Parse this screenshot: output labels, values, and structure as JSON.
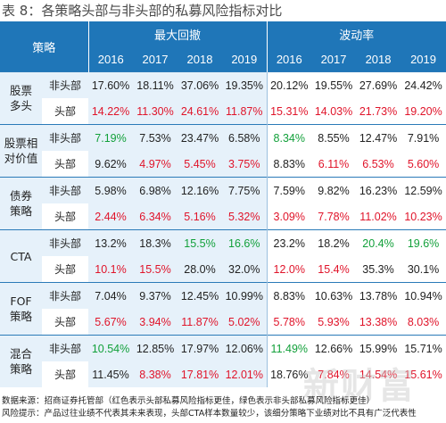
{
  "title": {
    "prefix": "表",
    "num": "8",
    "text": "：各策略头部与非头部的私募风险指标对比"
  },
  "header": {
    "strategy": "策略",
    "group1": "最大回撤",
    "group2": "波动率",
    "years": [
      "2016",
      "2017",
      "2018",
      "2019",
      "2016",
      "2017",
      "2018",
      "2019"
    ]
  },
  "groups": [
    {
      "strategy": "股票\n多头",
      "rows": [
        {
          "sub": "非头部",
          "values": [
            "17.60%",
            "18.11%",
            "37.06%",
            "19.35%",
            "20.12%",
            "19.55%",
            "27.69%",
            "24.42%"
          ]
        },
        {
          "sub": "头部",
          "values": [
            "14.22%",
            "11.30%",
            "24.61%",
            "11.87%",
            "15.31%",
            "14.03%",
            "21.73%",
            "19.20%"
          ]
        }
      ]
    },
    {
      "strategy": "股票相\n对价值",
      "rows": [
        {
          "sub": "非头部",
          "values": [
            "7.19%",
            "7.53%",
            "23.47%",
            "6.58%",
            "8.34%",
            "8.55%",
            "12.47%",
            "7.91%"
          ]
        },
        {
          "sub": "头部",
          "values": [
            "9.62%",
            "4.97%",
            "5.45%",
            "3.75%",
            "8.83%",
            "6.11%",
            "6.53%",
            "5.60%"
          ]
        }
      ]
    },
    {
      "strategy": "债券\n策略",
      "rows": [
        {
          "sub": "非头部",
          "values": [
            "5.98%",
            "6.98%",
            "12.16%",
            "7.75%",
            "7.59%",
            "9.82%",
            "16.23%",
            "12.59%"
          ]
        },
        {
          "sub": "头部",
          "values": [
            "2.44%",
            "6.34%",
            "5.16%",
            "5.32%",
            "3.09%",
            "7.78%",
            "11.02%",
            "10.23%"
          ]
        }
      ]
    },
    {
      "strategy": "CTA",
      "rows": [
        {
          "sub": "非头部",
          "values": [
            "13.2%",
            "18.3%",
            "15.5%",
            "16.6%",
            "23.2%",
            "18.2%",
            "20.4%",
            "19.6%"
          ]
        },
        {
          "sub": "头部",
          "values": [
            "10.1%",
            "15.5%",
            "28.0%",
            "32.0%",
            "12.0%",
            "15.4%",
            "35.3%",
            "30.1%"
          ]
        }
      ]
    },
    {
      "strategy": "FOF\n策略",
      "rows": [
        {
          "sub": "非头部",
          "values": [
            "7.04%",
            "9.37%",
            "12.45%",
            "10.99%",
            "8.83%",
            "10.63%",
            "13.78%",
            "10.94%"
          ]
        },
        {
          "sub": "头部",
          "values": [
            "5.67%",
            "3.94%",
            "11.87%",
            "5.02%",
            "5.78%",
            "5.93%",
            "13.38%",
            "8.03%"
          ]
        }
      ]
    },
    {
      "strategy": "混合\n策略",
      "rows": [
        {
          "sub": "非头部",
          "values": [
            "10.54%",
            "12.85%",
            "17.97%",
            "12.06%",
            "11.49%",
            "12.66%",
            "15.99%",
            "15.71%"
          ]
        },
        {
          "sub": "头部",
          "values": [
            "11.45%",
            "8.38%",
            "17.81%",
            "12.01%",
            "18.76%",
            "7.84%",
            "14.54%",
            "15.61%"
          ]
        }
      ]
    }
  ],
  "colors": {
    "header_bg": "#1f76b8",
    "highlight_red": "#e0142a",
    "highlight_green": "#12a03a",
    "band_light": "#e6f1fa"
  },
  "highlights": {
    "0": {
      "1": [
        "r",
        "r",
        "r",
        "r",
        "r",
        "r",
        "r",
        "r"
      ]
    },
    "1": {
      "0": [
        "g",
        "",
        "",
        "",
        "g",
        "",
        "",
        ""
      ],
      "1": [
        "",
        "r",
        "r",
        "r",
        "",
        "r",
        "r",
        "r"
      ]
    },
    "2": {
      "1": [
        "r",
        "r",
        "r",
        "r",
        "r",
        "r",
        "r",
        "r"
      ]
    },
    "3": {
      "0": [
        "",
        "",
        "g",
        "g",
        "",
        "",
        "g",
        "g"
      ],
      "1": [
        "r",
        "r",
        "",
        "",
        "r",
        "r",
        "",
        ""
      ]
    },
    "4": {
      "1": [
        "r",
        "r",
        "r",
        "r",
        "r",
        "r",
        "r",
        "r"
      ]
    },
    "5": {
      "0": [
        "g",
        "",
        "",
        "",
        "g",
        "",
        "",
        ""
      ],
      "1": [
        "",
        "r",
        "r",
        "r",
        "",
        "r",
        "r",
        "r"
      ]
    }
  },
  "footer": {
    "line1": "数据来源：招商证券托管部（红色表示头部私募风险指标更佳，绿色表示非头部私募风险指标更佳）",
    "line2": "风险提示：产品过往业绩不代表其未来表现，头部CTA样本数量较少，该细分策略下业绩对比不具有广泛代表性"
  },
  "watermark": "新财富"
}
